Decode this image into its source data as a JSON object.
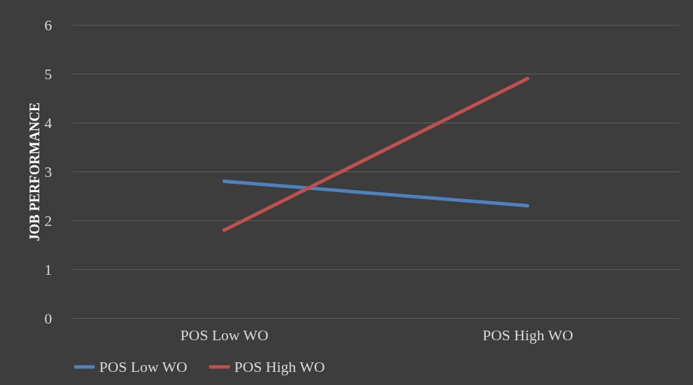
{
  "chart_data": {
    "type": "line",
    "ylabel": "JOB PERFORMANCE",
    "categories": [
      "POS Low WO",
      "POS High WO"
    ],
    "series": [
      {
        "name": "POS Low WO",
        "color": "#4f81bd",
        "values": [
          2.8,
          2.3
        ]
      },
      {
        "name": "POS High WO",
        "color": "#c0504d",
        "values": [
          1.8,
          4.9
        ]
      }
    ],
    "ylim": [
      0,
      6
    ],
    "yticks": [
      0,
      1,
      2,
      3,
      4,
      5,
      6
    ],
    "grid": "y",
    "legend": "bottom",
    "marker": "none",
    "line_style": "solid"
  }
}
